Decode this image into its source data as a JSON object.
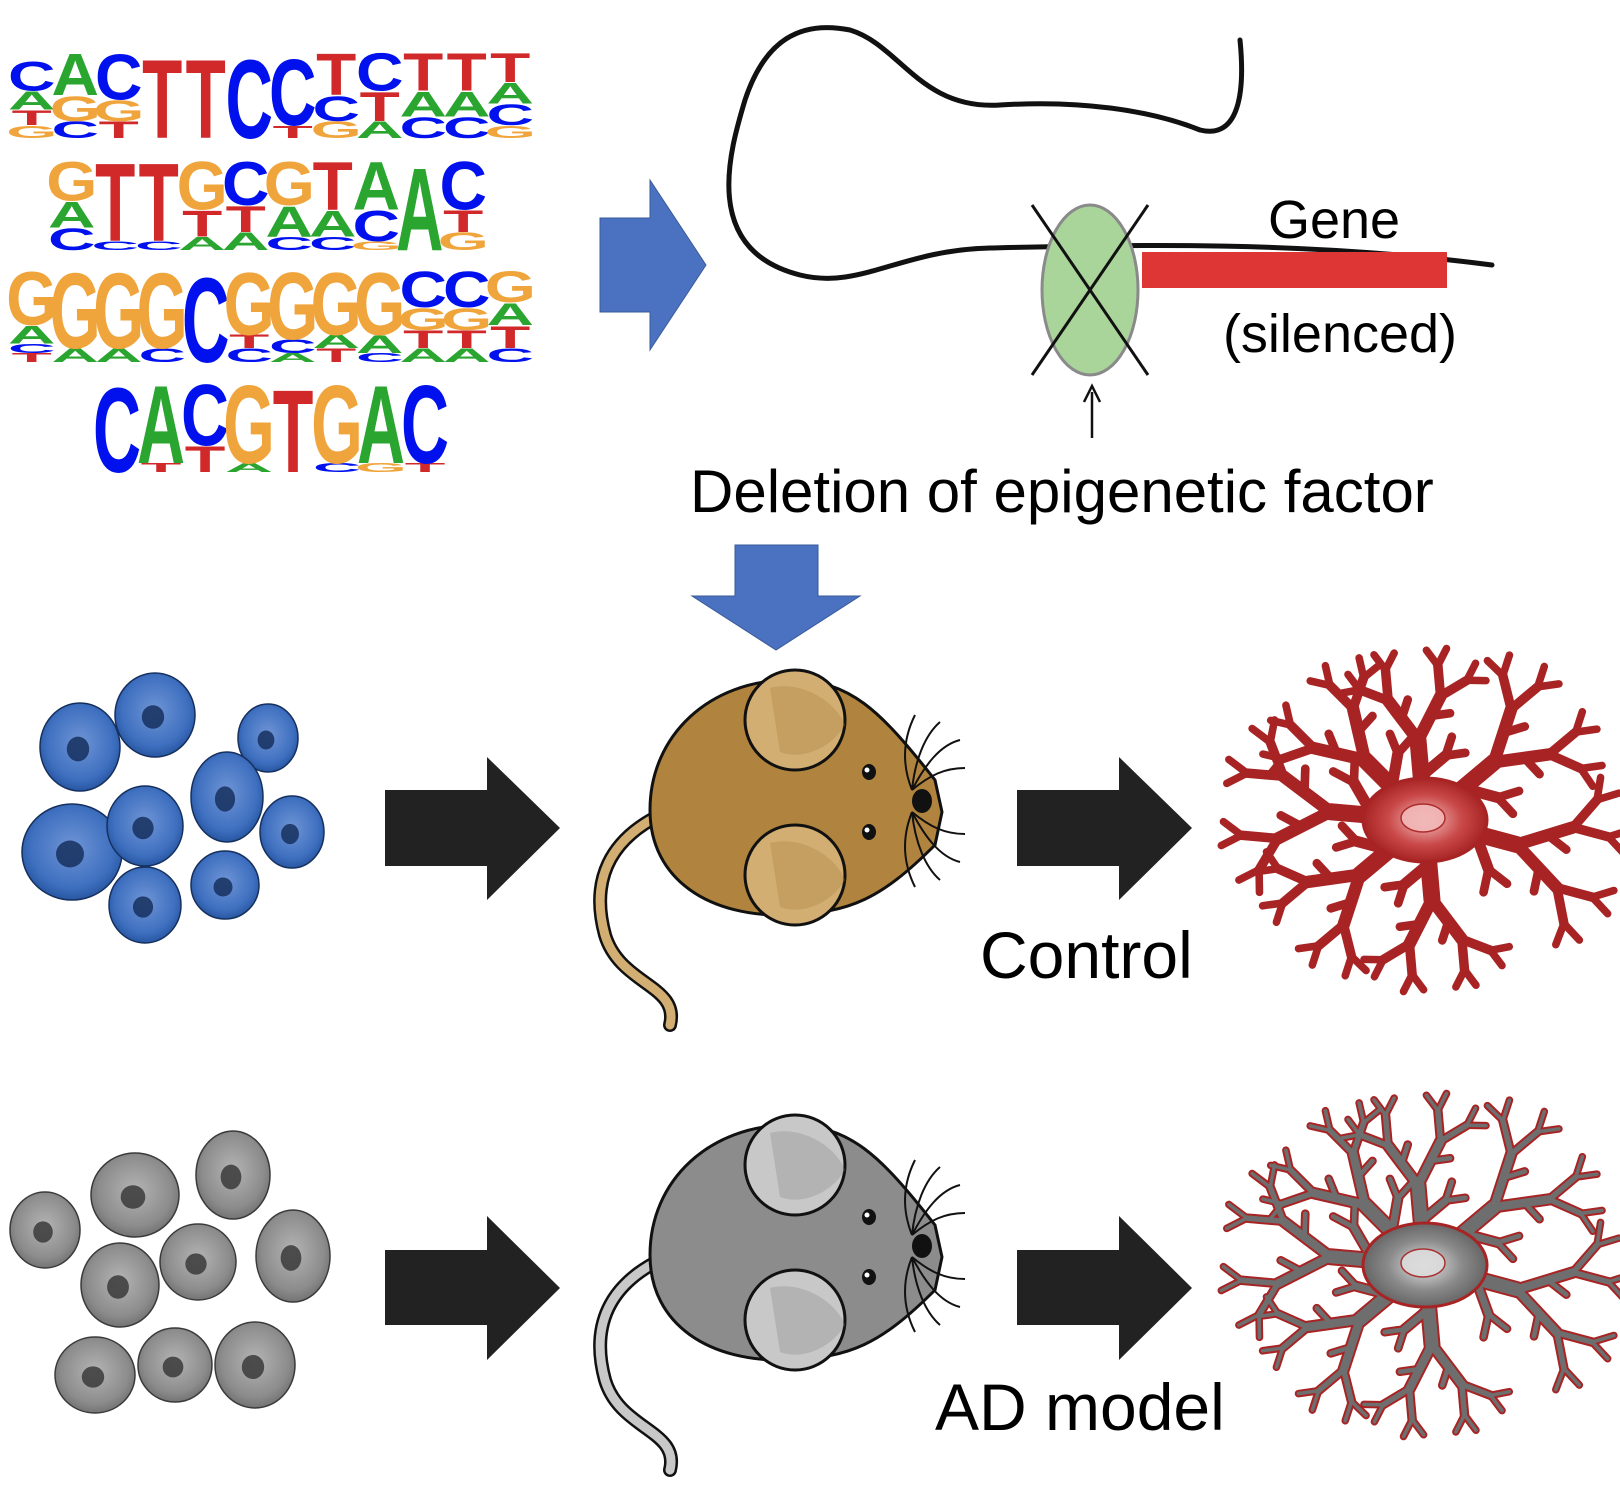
{
  "motifs": [
    {
      "consensus": "CACTTCCTCTTT",
      "columns": [
        [
          [
            "C",
            "#0011ee",
            0.35
          ],
          [
            "T",
            "#d1282a",
            0.18
          ],
          [
            "A",
            "#2aa52f",
            0.22
          ],
          [
            "G",
            "#f0a53c",
            0.15
          ]
        ],
        [
          [
            "A",
            "#2aa52f",
            0.5
          ],
          [
            "G",
            "#f0a53c",
            0.3
          ],
          [
            "C",
            "#0011ee",
            0.2
          ]
        ],
        [
          [
            "C",
            "#0011ee",
            0.55
          ],
          [
            "G",
            "#f0a53c",
            0.25
          ],
          [
            "T",
            "#d1282a",
            0.2
          ]
        ],
        [
          [
            "T",
            "#d1282a",
            0.95
          ]
        ],
        [
          [
            "T",
            "#d1282a",
            0.95
          ]
        ],
        [
          [
            "C",
            "#0011ee",
            0.95
          ]
        ],
        [
          [
            "C",
            "#0011ee",
            0.8
          ],
          [
            "T",
            "#d1282a",
            0.15
          ]
        ],
        [
          [
            "T",
            "#d1282a",
            0.5
          ],
          [
            "C",
            "#0011ee",
            0.3
          ],
          [
            "G",
            "#f0a53c",
            0.2
          ]
        ],
        [
          [
            "C",
            "#0011ee",
            0.45
          ],
          [
            "T",
            "#d1282a",
            0.35
          ],
          [
            "A",
            "#2aa52f",
            0.2
          ]
        ],
        [
          [
            "T",
            "#d1282a",
            0.45
          ],
          [
            "A",
            "#2aa52f",
            0.3
          ],
          [
            "C",
            "#0011ee",
            0.25
          ]
        ],
        [
          [
            "T",
            "#d1282a",
            0.45
          ],
          [
            "A",
            "#2aa52f",
            0.3
          ],
          [
            "C",
            "#0011ee",
            0.25
          ]
        ],
        [
          [
            "T",
            "#d1282a",
            0.35
          ],
          [
            "C",
            "#0011ee",
            0.25
          ],
          [
            "A",
            "#2aa52f",
            0.25
          ],
          [
            "G",
            "#f0a53c",
            0.15
          ]
        ]
      ]
    },
    {
      "consensus": "GTTGCGTAAC",
      "columns": [
        [
          [
            "G",
            "#f0a53c",
            0.45
          ],
          [
            "A",
            "#2aa52f",
            0.3
          ],
          [
            "C",
            "#0011ee",
            0.25
          ]
        ],
        [
          [
            "T",
            "#d1282a",
            0.9
          ],
          [
            "C",
            "#0011ee",
            0.1
          ]
        ],
        [
          [
            "T",
            "#d1282a",
            0.9
          ],
          [
            "C",
            "#0011ee",
            0.1
          ]
        ],
        [
          [
            "G",
            "#f0a53c",
            0.55
          ],
          [
            "T",
            "#d1282a",
            0.3
          ],
          [
            "A",
            "#2aa52f",
            0.15
          ]
        ],
        [
          [
            "C",
            "#0011ee",
            0.5
          ],
          [
            "T",
            "#d1282a",
            0.3
          ],
          [
            "A",
            "#2aa52f",
            0.2
          ]
        ],
        [
          [
            "G",
            "#f0a53c",
            0.5
          ],
          [
            "A",
            "#2aa52f",
            0.35
          ],
          [
            "C",
            "#0011ee",
            0.15
          ]
        ],
        [
          [
            "T",
            "#d1282a",
            0.55
          ],
          [
            "A",
            "#2aa52f",
            0.3
          ],
          [
            "C",
            "#0011ee",
            0.15
          ]
        ],
        [
          [
            "A",
            "#2aa52f",
            0.55
          ],
          [
            "C",
            "#0011ee",
            0.35
          ],
          [
            "G",
            "#f0a53c",
            0.1
          ]
        ],
        [
          [
            "A",
            "#2aa52f",
            0.95
          ]
        ],
        [
          [
            "C",
            "#0011ee",
            0.55
          ],
          [
            "T",
            "#d1282a",
            0.25
          ],
          [
            "G",
            "#f0a53c",
            0.2
          ]
        ]
      ]
    },
    {
      "consensus": "GGGGCGGGGCCG",
      "columns": [
        [
          [
            "G",
            "#f0a53c",
            0.6
          ],
          [
            "A",
            "#2aa52f",
            0.2
          ],
          [
            "T",
            "#d1282a",
            0.1
          ],
          [
            "C",
            "#0011ee",
            0.1
          ]
        ],
        [
          [
            "G",
            "#f0a53c",
            0.85
          ],
          [
            "A",
            "#2aa52f",
            0.15
          ]
        ],
        [
          [
            "G",
            "#f0a53c",
            0.85
          ],
          [
            "A",
            "#2aa52f",
            0.15
          ]
        ],
        [
          [
            "G",
            "#f0a53c",
            0.85
          ],
          [
            "C",
            "#0011ee",
            0.15
          ]
        ],
        [
          [
            "C",
            "#0011ee",
            0.95
          ]
        ],
        [
          [
            "G",
            "#f0a53c",
            0.7
          ],
          [
            "C",
            "#0011ee",
            0.15
          ],
          [
            "T",
            "#d1282a",
            0.15
          ]
        ],
        [
          [
            "G",
            "#f0a53c",
            0.75
          ],
          [
            "C",
            "#0011ee",
            0.15
          ],
          [
            "A",
            "#2aa52f",
            0.1
          ]
        ],
        [
          [
            "G",
            "#f0a53c",
            0.7
          ],
          [
            "T",
            "#d1282a",
            0.15
          ],
          [
            "A",
            "#2aa52f",
            0.15
          ]
        ],
        [
          [
            "G",
            "#f0a53c",
            0.7
          ],
          [
            "A",
            "#2aa52f",
            0.2
          ],
          [
            "C",
            "#0011ee",
            0.1
          ]
        ],
        [
          [
            "C",
            "#0011ee",
            0.4
          ],
          [
            "G",
            "#f0a53c",
            0.25
          ],
          [
            "T",
            "#d1282a",
            0.2
          ],
          [
            "A",
            "#2aa52f",
            0.15
          ]
        ],
        [
          [
            "C",
            "#0011ee",
            0.4
          ],
          [
            "G",
            "#f0a53c",
            0.25
          ],
          [
            "T",
            "#d1282a",
            0.2
          ],
          [
            "A",
            "#2aa52f",
            0.15
          ]
        ],
        [
          [
            "G",
            "#f0a53c",
            0.35
          ],
          [
            "T",
            "#d1282a",
            0.25
          ],
          [
            "A",
            "#2aa52f",
            0.25
          ],
          [
            "C",
            "#0011ee",
            0.15
          ]
        ]
      ]
    },
    {
      "consensus": "CACGTGAC",
      "columns": [
        [
          [
            "C",
            "#0011ee",
            0.97
          ]
        ],
        [
          [
            "A",
            "#2aa52f",
            0.9
          ],
          [
            "T",
            "#d1282a",
            0.1
          ]
        ],
        [
          [
            "C",
            "#0011ee",
            0.7
          ],
          [
            "T",
            "#d1282a",
            0.3
          ]
        ],
        [
          [
            "G",
            "#f0a53c",
            0.9
          ],
          [
            "A",
            "#2aa52f",
            0.1
          ]
        ],
        [
          [
            "T",
            "#d1282a",
            0.95
          ]
        ],
        [
          [
            "G",
            "#f0a53c",
            0.9
          ],
          [
            "C",
            "#0011ee",
            0.1
          ]
        ],
        [
          [
            "A",
            "#2aa52f",
            0.9
          ],
          [
            "G",
            "#f0a53c",
            0.1
          ]
        ],
        [
          [
            "C",
            "#0011ee",
            0.9
          ],
          [
            "T",
            "#d1282a",
            0.1
          ]
        ]
      ]
    }
  ],
  "gene": {
    "label": "Gene",
    "status": "(silenced)",
    "bar_color": "#de3535"
  },
  "factor_label": "Deletion of epigenetic factor",
  "groups": {
    "control": {
      "label": "Control",
      "cell_fill": "#3e6fbf",
      "cell_nucleus": "#16305e",
      "mouse_body": "#b0843e",
      "mouse_ear": "#d2ae73",
      "neuron_color": "#a82424",
      "neuron_soma_center": "#f2b8b8"
    },
    "ad_model": {
      "label": "AD model",
      "cell_fill": "#8a8a8a",
      "cell_nucleus": "#3a3a3a",
      "mouse_body": "#8c8c8c",
      "mouse_ear": "#c8c8c8",
      "neuron_color": "#a82424",
      "neuron_fill": "#6e6e6e",
      "neuron_soma_center": "#dcdcdc"
    }
  },
  "colors": {
    "blue_arrow": "#4a72c0",
    "black_arrow": "#222222",
    "nucleosome": "#a9d49a"
  }
}
